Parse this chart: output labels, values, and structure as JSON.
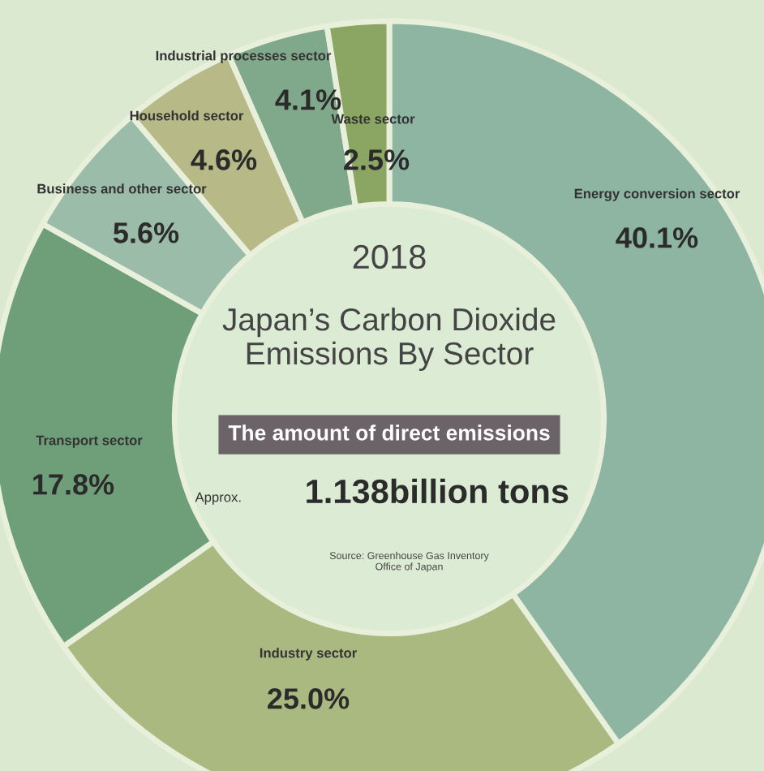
{
  "chart_data": {
    "type": "donut",
    "title": "2018",
    "subtitle": "Japan’s Carbon Dioxide\nEmissions By Sector",
    "categories": [
      "Energy conversion sector",
      "Industry sector",
      "Transport sector",
      "Business and other sector",
      "Household sector",
      "Industrial processes sector",
      "Waste sector"
    ],
    "values": [
      40.1,
      25.0,
      17.8,
      5.6,
      4.6,
      4.1,
      2.5
    ],
    "value_labels": [
      "40.1%",
      "25.0%",
      "17.8%",
      "5.6%",
      "4.6%",
      "4.1%",
      "2.5%"
    ],
    "colors": [
      "#8db5a2",
      "#a9b97f",
      "#6f9f79",
      "#9cbcaa",
      "#b7ba86",
      "#80a98b",
      "#8ba562"
    ],
    "annotations": [
      "The amount of direct emissions",
      "Approx.",
      "1.138billion tons",
      "Source: Greenhouse Gas Inventory\nOffice of Japan"
    ],
    "legend": false
  }
}
